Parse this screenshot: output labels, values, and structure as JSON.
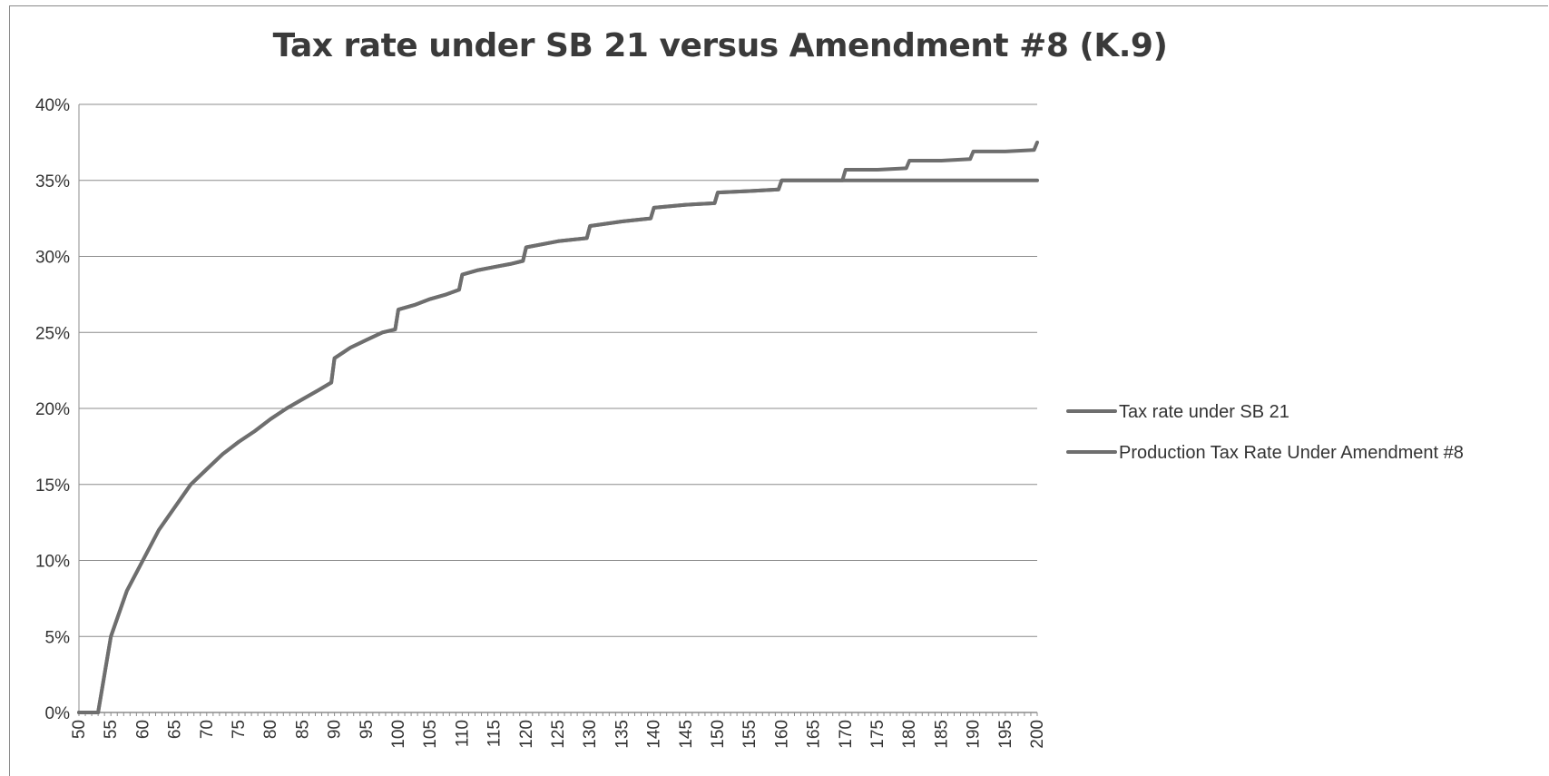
{
  "chart_data": {
    "type": "line",
    "title": "Tax rate under SB 21 versus Amendment #8 (K.9)",
    "xlabel": "",
    "ylabel": "",
    "xlim": [
      50,
      200
    ],
    "ylim": [
      0,
      40
    ],
    "y_ticks": [
      "0%",
      "5%",
      "10%",
      "15%",
      "20%",
      "25%",
      "30%",
      "35%",
      "40%"
    ],
    "y_tick_values": [
      0,
      5,
      10,
      15,
      20,
      25,
      30,
      35,
      40
    ],
    "x_ticks": [
      "50",
      "55",
      "60",
      "65",
      "70",
      "75",
      "80",
      "85",
      "90",
      "95",
      "100",
      "105",
      "110",
      "115",
      "120",
      "125",
      "130",
      "135",
      "140",
      "145",
      "150",
      "155",
      "160",
      "165",
      "170",
      "175",
      "180",
      "185",
      "190",
      "195",
      "200"
    ],
    "x_tick_values": [
      50,
      55,
      60,
      65,
      70,
      75,
      80,
      85,
      90,
      95,
      100,
      105,
      110,
      115,
      120,
      125,
      130,
      135,
      140,
      145,
      150,
      155,
      160,
      165,
      170,
      175,
      180,
      185,
      190,
      195,
      200
    ],
    "grid": true,
    "legend_position": "right",
    "line_color": "#6e6e6e",
    "series": [
      {
        "name": "Tax rate under SB 21",
        "x": [
          50,
          53,
          55,
          57.5,
          60,
          62.5,
          65,
          67.5,
          70,
          72.5,
          75,
          77.5,
          80,
          82.5,
          85,
          87.5,
          89.5,
          90,
          92.5,
          95,
          97.5,
          99.5,
          100,
          102.5,
          105,
          107.5,
          109.5,
          110,
          112.5,
          115,
          117.5,
          119.5,
          120,
          125,
          129.5,
          130,
          135,
          139.5,
          140,
          145,
          149.5,
          150,
          155,
          159.5,
          160,
          165,
          169.5,
          170,
          175,
          179.5,
          180,
          185,
          189.5,
          190,
          195,
          199.5,
          200
        ],
        "y": [
          0,
          0,
          5,
          8,
          10,
          12,
          13.5,
          15,
          16,
          17,
          17.8,
          18.5,
          19.3,
          20,
          20.6,
          21.2,
          21.7,
          23.3,
          24,
          24.5,
          25,
          25.2,
          26.5,
          26.8,
          27.2,
          27.5,
          27.8,
          28.8,
          29.1,
          29.3,
          29.5,
          29.7,
          30.6,
          31,
          31.2,
          32,
          32.3,
          32.5,
          33.2,
          33.4,
          33.5,
          34.2,
          34.3,
          34.4,
          35,
          35,
          35,
          35.7,
          35.7,
          35.8,
          36.3,
          36.3,
          36.4,
          36.9,
          36.9,
          37,
          37.5
        ]
      },
      {
        "name": "Production Tax Rate Under Amendment #8",
        "x": [
          50,
          53,
          55,
          57.5,
          60,
          62.5,
          65,
          67.5,
          70,
          72.5,
          75,
          77.5,
          80,
          82.5,
          85,
          87.5,
          89.5,
          90,
          92.5,
          95,
          97.5,
          99.5,
          100,
          102.5,
          105,
          107.5,
          109.5,
          110,
          112.5,
          115,
          117.5,
          119.5,
          120,
          125,
          129.5,
          130,
          135,
          139.5,
          140,
          145,
          149.5,
          150,
          155,
          159.5,
          160,
          200
        ],
        "y": [
          0,
          0,
          5,
          8,
          10,
          12,
          13.5,
          15,
          16,
          17,
          17.8,
          18.5,
          19.3,
          20,
          20.6,
          21.2,
          21.7,
          23.3,
          24,
          24.5,
          25,
          25.2,
          26.5,
          26.8,
          27.2,
          27.5,
          27.8,
          28.8,
          29.1,
          29.3,
          29.5,
          29.7,
          30.6,
          31,
          31.2,
          32,
          32.3,
          32.5,
          33.2,
          33.4,
          33.5,
          34.2,
          34.3,
          34.4,
          35,
          35
        ]
      }
    ]
  }
}
